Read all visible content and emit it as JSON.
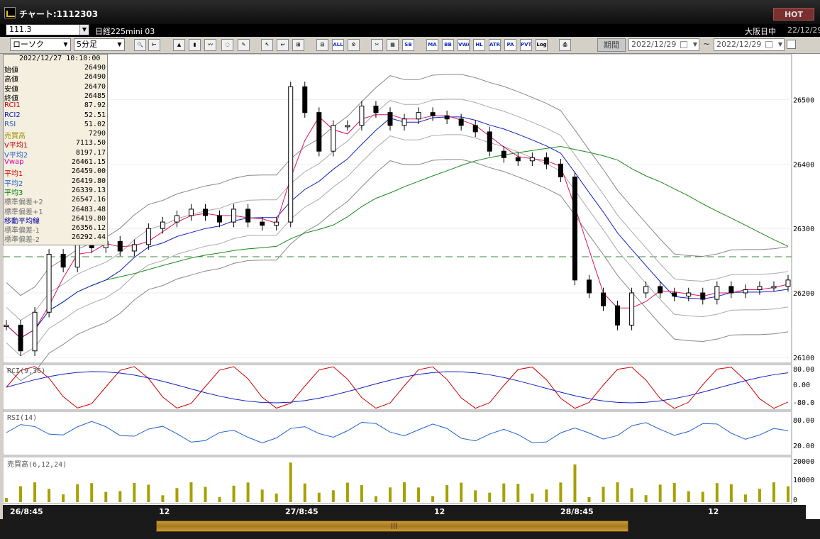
{
  "window": {
    "title": "チャート:1112303",
    "hot_label": "HOT"
  },
  "header": {
    "code": "111.3",
    "instrument": "日経225mini 03",
    "session": "大阪日中",
    "date": "22/12/29"
  },
  "toolbar": {
    "chart_type": "ローソク",
    "interval": "5分足",
    "buttons": [
      {
        "name": "zoom-button",
        "label": "🔍"
      },
      {
        "name": "cursor-button",
        "label": "⊢"
      },
      {
        "name": "candle-button",
        "label": "▲"
      },
      {
        "name": "bar-button",
        "label": "▮"
      },
      {
        "name": "line-button",
        "label": "〰"
      },
      {
        "name": "disabled-button",
        "label": "◌"
      },
      {
        "name": "pen-button",
        "label": "✎"
      },
      {
        "name": "pointer-button",
        "label": "↖"
      },
      {
        "name": "erase-button",
        "label": "↩"
      },
      {
        "name": "candle2-button",
        "label": "⊞"
      },
      {
        "name": "bar2-button",
        "label": "⊟"
      },
      {
        "name": "all-button",
        "label": "ALL"
      },
      {
        "name": "tools-button",
        "label": "⚙"
      },
      {
        "name": "wrench-button",
        "label": "✂"
      },
      {
        "name": "color-button",
        "label": "▦"
      },
      {
        "name": "sb-button",
        "label": "SB"
      },
      {
        "name": "ma-button",
        "label": "MA"
      },
      {
        "name": "bb-button",
        "label": "BB"
      },
      {
        "name": "vwap-button",
        "label": "VWA"
      },
      {
        "name": "hl-button",
        "label": "HL"
      },
      {
        "name": "atr-button",
        "label": "ATR"
      },
      {
        "name": "pa-button",
        "label": "PA"
      },
      {
        "name": "pvt-button",
        "label": "PVT"
      },
      {
        "name": "log-button",
        "label": "Log"
      },
      {
        "name": "print-button",
        "label": "⎙"
      }
    ],
    "period_label": "期間",
    "date_from": "2022/12/29",
    "date_to": "2022/12/29",
    "tilde": "~"
  },
  "info": {
    "timestamp": "2022/12/27  10:10:00",
    "rows": [
      {
        "k": "始値",
        "v": "26490",
        "c": "#000"
      },
      {
        "k": "高値",
        "v": "26490",
        "c": "#000"
      },
      {
        "k": "安値",
        "v": "26470",
        "c": "#000"
      },
      {
        "k": "終値",
        "v": "26485",
        "c": "#000"
      },
      {
        "k": "RCI1",
        "v": "87.92",
        "c": "#d00000"
      },
      {
        "k": "RCI2",
        "v": "52.51",
        "c": "#1020c0"
      },
      {
        "k": "RSI",
        "v": "51.02",
        "c": "#2060d0"
      },
      {
        "k": "売買高",
        "v": "7290",
        "c": "#a09000"
      },
      {
        "k": "V平均1",
        "v": "7113.50",
        "c": "#d00000"
      },
      {
        "k": "V平均2",
        "v": "8197.17",
        "c": "#2060d0"
      },
      {
        "k": "Vwap",
        "v": "26461.15",
        "c": "#e000a0"
      },
      {
        "k": "平均1",
        "v": "26459.00",
        "c": "#d00000"
      },
      {
        "k": "平均2",
        "v": "26419.80",
        "c": "#2060d0"
      },
      {
        "k": "平均3",
        "v": "26339.13",
        "c": "#008000"
      },
      {
        "k": "標準偏差+2",
        "v": "26547.16",
        "c": "#707070"
      },
      {
        "k": "標準偏差+1",
        "v": "26483.48",
        "c": "#707070"
      },
      {
        "k": "移動平均線",
        "v": "26419.80",
        "c": "#0000a0"
      },
      {
        "k": "標準偏差-1",
        "v": "26356.12",
        "c": "#707070"
      },
      {
        "k": "標準偏差-2",
        "v": "26292.44",
        "c": "#707070"
      }
    ]
  },
  "panels": {
    "rci_label": "RCI(9,36)",
    "rsi_label": "RSI(14)",
    "vol_label": "売買高(6,12,24)"
  },
  "axes": {
    "price_ticks": [
      "26500",
      "26400",
      "26300",
      "26200",
      "26100"
    ],
    "rci_ticks": [
      "80.00",
      "0.00",
      "-80.0"
    ],
    "rsi_ticks": [
      "80.00",
      "20.00"
    ],
    "vol_ticks": [
      "20000",
      "10000",
      "0"
    ],
    "x_labels": [
      "26/8:45",
      "12",
      "27/8:45",
      "12",
      "28/8:45",
      "12"
    ]
  },
  "chart_data": {
    "type": "candlestick",
    "ylim": [
      26080,
      26560
    ],
    "closes": [
      26150,
      26110,
      26170,
      26260,
      26240,
      26280,
      26270,
      26280,
      26265,
      26275,
      26300,
      26310,
      26320,
      26330,
      26320,
      26310,
      26330,
      26310,
      26305,
      26310,
      26520,
      26480,
      26420,
      26460,
      26460,
      26490,
      26480,
      26460,
      26470,
      26480,
      26475,
      26470,
      26460,
      26450,
      26420,
      26410,
      26405,
      26410,
      26400,
      26380,
      26220,
      26200,
      26180,
      26150,
      26200,
      26210,
      26200,
      26195,
      26200,
      26190,
      26210,
      26200,
      26205,
      26210,
      26210,
      26220
    ]
  },
  "colors": {
    "accent": "#c89a38"
  }
}
